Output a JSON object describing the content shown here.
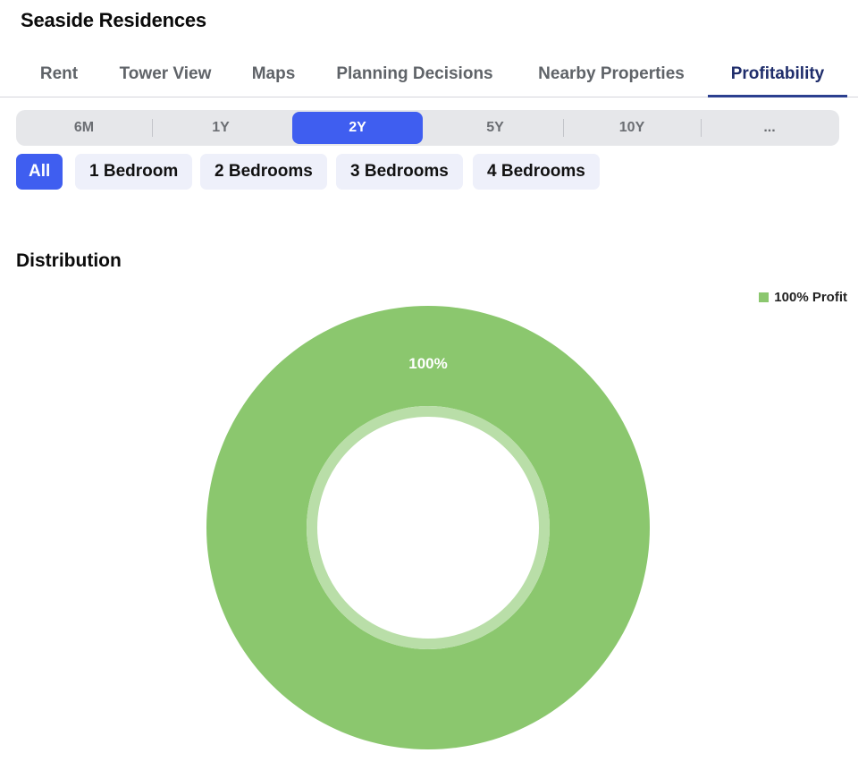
{
  "app": {
    "title": "Seaside Residences"
  },
  "tabs": [
    {
      "label": "Rent",
      "active": false
    },
    {
      "label": "Tower View",
      "active": false
    },
    {
      "label": "Maps",
      "active": false
    },
    {
      "label": "Planning Decisions",
      "active": false
    },
    {
      "label": "Nearby Properties",
      "active": false
    },
    {
      "label": "Profitability",
      "active": true
    }
  ],
  "periods": [
    {
      "label": "6M",
      "active": false
    },
    {
      "label": "1Y",
      "active": false
    },
    {
      "label": "2Y",
      "active": true
    },
    {
      "label": "5Y",
      "active": false
    },
    {
      "label": "10Y",
      "active": false
    },
    {
      "label": "...",
      "active": false
    }
  ],
  "bedroom_filters": [
    {
      "label": "All",
      "active": true
    },
    {
      "label": "1 Bedroom",
      "active": false
    },
    {
      "label": "2 Bedrooms",
      "active": false
    },
    {
      "label": "3 Bedrooms",
      "active": false
    },
    {
      "label": "4 Bedrooms",
      "active": false
    }
  ],
  "section": {
    "title": "Distribution"
  },
  "colors": {
    "accent": "#3f5ef0",
    "active_tab": "#1f2d6b",
    "profit": "#8bc76e",
    "profit_inner_ring": "#b9dea8"
  },
  "chart_data": {
    "type": "pie",
    "donut": true,
    "title": "",
    "legend_position": "top-right",
    "slices": [
      {
        "name": "100% Profit",
        "value": 100,
        "label": "100%",
        "color": "#8bc76e"
      }
    ]
  }
}
